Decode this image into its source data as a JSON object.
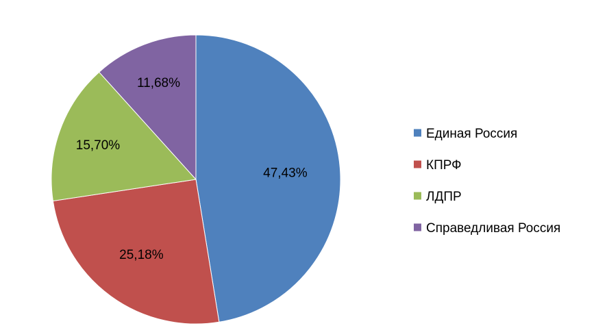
{
  "chart_data": {
    "type": "pie",
    "title": "",
    "categories": [
      "Единая Россия",
      "КПРФ",
      "ЛДПР",
      "Справедливая Россия"
    ],
    "values": [
      47.43,
      25.18,
      15.7,
      11.68
    ],
    "value_labels": [
      "47,43%",
      "25,18%",
      "15,70%",
      "11,68%"
    ],
    "colors": [
      "#4F81BD",
      "#C0504D",
      "#9BBB59",
      "#8064A2"
    ],
    "start_angle": "12 o'clock",
    "direction": "clockwise",
    "legend": {
      "position": "right",
      "entries": [
        "Единая Россия",
        "КПРФ",
        "ЛДПР",
        "Справедливая Россия"
      ]
    }
  }
}
